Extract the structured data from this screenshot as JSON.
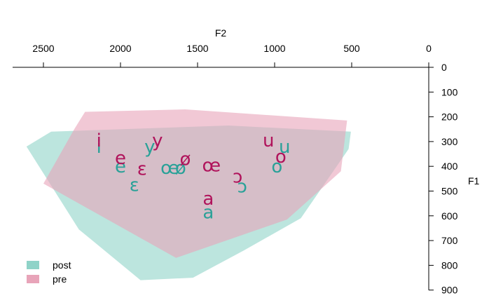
{
  "chart_data": {
    "type": "scatter",
    "title": "",
    "xlabel": "F2",
    "ylabel": "F1",
    "x_reversed": true,
    "y_reversed": true,
    "x_axis_position": "top",
    "y_axis_position": "right",
    "xlim": [
      0,
      2700
    ],
    "ylim": [
      0,
      900
    ],
    "xticks": [
      2500,
      2000,
      1500,
      1000,
      500,
      0
    ],
    "yticks": [
      0,
      100,
      200,
      300,
      400,
      500,
      600,
      700,
      800,
      900
    ],
    "legend": {
      "position": "bottom-left",
      "entries": [
        {
          "label": "post",
          "color": "#8fd3c8"
        },
        {
          "label": "pre",
          "color": "#e8a4b9"
        }
      ]
    },
    "series": [
      {
        "name": "post",
        "color": "#2aa198",
        "area_color": "#8fd3c8",
        "hull": [
          [
            2610,
            320
          ],
          [
            2450,
            260
          ],
          [
            1300,
            235
          ],
          [
            505,
            260
          ],
          [
            520,
            330
          ],
          [
            830,
            610
          ],
          [
            1200,
            740
          ],
          [
            1530,
            850
          ],
          [
            1870,
            860
          ],
          [
            2270,
            655
          ]
        ],
        "points": [
          {
            "label": "i",
            "f2": 2140,
            "f1": 320
          },
          {
            "label": "y",
            "f2": 1810,
            "f1": 320
          },
          {
            "label": "e",
            "f2": 2000,
            "f1": 400
          },
          {
            "label": "ɛ",
            "f2": 1910,
            "f1": 475
          },
          {
            "label": "ø",
            "f2": 1610,
            "f1": 405
          },
          {
            "label": "œ",
            "f2": 1680,
            "f1": 405
          },
          {
            "label": "ɔ",
            "f2": 1210,
            "f1": 480
          },
          {
            "label": "u",
            "f2": 935,
            "f1": 320
          },
          {
            "label": "o",
            "f2": 985,
            "f1": 400
          },
          {
            "label": "a",
            "f2": 1430,
            "f1": 585
          }
        ]
      },
      {
        "name": "pre",
        "color": "#b0135b",
        "area_color": "#e8a4b9",
        "hull": [
          [
            2500,
            470
          ],
          [
            2300,
            250
          ],
          [
            2230,
            180
          ],
          [
            1580,
            170
          ],
          [
            530,
            215
          ],
          [
            570,
            420
          ],
          [
            920,
            615
          ],
          [
            1640,
            770
          ]
        ],
        "points": [
          {
            "label": "i",
            "f2": 2140,
            "f1": 295
          },
          {
            "label": "y",
            "f2": 1760,
            "f1": 295
          },
          {
            "label": "e",
            "f2": 2000,
            "f1": 365
          },
          {
            "label": "ɛ",
            "f2": 1860,
            "f1": 410
          },
          {
            "label": "ø",
            "f2": 1580,
            "f1": 370
          },
          {
            "label": "œ",
            "f2": 1410,
            "f1": 395
          },
          {
            "label": "ɔ",
            "f2": 1240,
            "f1": 440
          },
          {
            "label": "u",
            "f2": 1040,
            "f1": 295
          },
          {
            "label": "o",
            "f2": 960,
            "f1": 360
          },
          {
            "label": "a",
            "f2": 1430,
            "f1": 530
          }
        ]
      }
    ]
  }
}
